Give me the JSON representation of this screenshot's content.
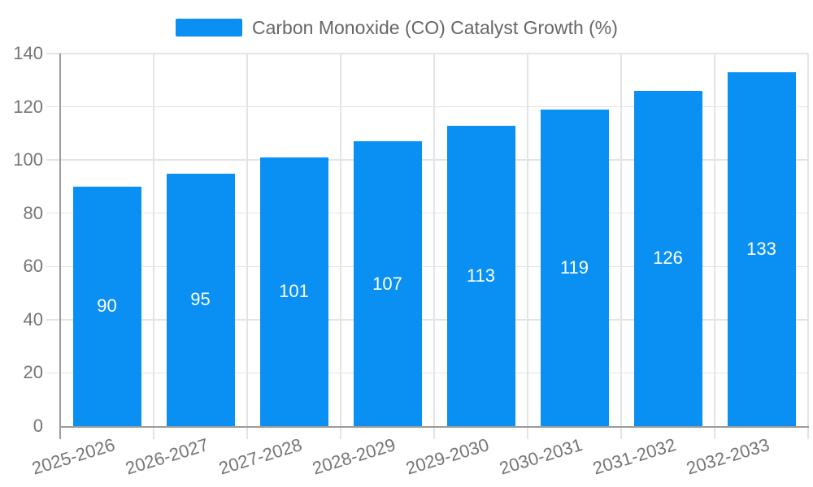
{
  "legend": {
    "label": "Carbon Monoxide (CO) Catalyst Growth (%)"
  },
  "chart_data": {
    "type": "bar",
    "title": "Carbon Monoxide (CO) Catalyst Growth (%)",
    "series": [
      {
        "name": "Carbon Monoxide (CO) Catalyst Growth (%)",
        "values": [
          90,
          95,
          101,
          107,
          113,
          119,
          126,
          133
        ]
      }
    ],
    "categories": [
      "2025-2026",
      "2026-2027",
      "2027-2028",
      "2028-2029",
      "2029-2030",
      "2030-2031",
      "2031-2032",
      "2032-2033"
    ],
    "bar_value_labels": [
      "90",
      "95",
      "101",
      "107",
      "113",
      "119",
      "126",
      "133"
    ],
    "xlabel": "",
    "ylabel": "",
    "ylim": [
      0,
      140
    ],
    "yticks": [
      0,
      20,
      40,
      60,
      80,
      100,
      120,
      140
    ],
    "grid": true,
    "legend_position": "top",
    "colors": {
      "bar": "#0a90f3",
      "bar_label": "#ffffff",
      "grid": "#e4e4e4",
      "axis": "#9b9b9b",
      "tick_label": "#757575",
      "title": "#666666",
      "background": "#ffffff"
    }
  }
}
